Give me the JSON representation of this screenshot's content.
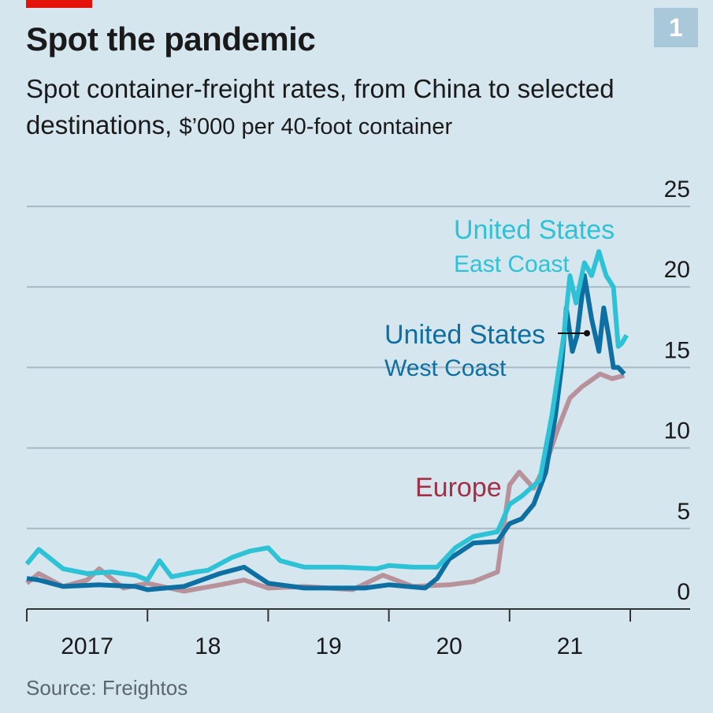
{
  "header": {
    "title": "Spot the pandemic",
    "subtitle_main": "Spot container-freight rates, from China to selected destinations,",
    "subtitle_unit": "$’000 per 40-foot container",
    "badge": "1"
  },
  "footer": {
    "source": "Source: Freightos"
  },
  "colors": {
    "east": "#2ec2d6",
    "west": "#0e6fa2",
    "europe": "#b8929a",
    "europe_label": "#a32f44",
    "grid": "#a9b8c2"
  },
  "chart_data": {
    "type": "line",
    "title": "Spot the pandemic",
    "ylabel": "$’000 per 40-foot container",
    "ylim": [
      0,
      25
    ],
    "xlim": [
      2017,
      2022
    ],
    "yticks": [
      "0",
      "5",
      "10",
      "15",
      "20",
      "25"
    ],
    "xtick_labels": [
      "2017",
      "18",
      "19",
      "20",
      "21"
    ],
    "series": [
      {
        "name": "United States East Coast",
        "label1": "United States",
        "label2": "East Coast",
        "x": [
          2017,
          2017.1,
          2017.3,
          2017.5,
          2017.7,
          2017.9,
          2018.0,
          2018.1,
          2018.2,
          2018.4,
          2018.5,
          2018.7,
          2018.85,
          2019.0,
          2019.1,
          2019.3,
          2019.6,
          2019.9,
          2020.0,
          2020.2,
          2020.4,
          2020.55,
          2020.7,
          2020.9,
          2021.0,
          2021.1,
          2021.25,
          2021.35,
          2021.45,
          2021.5,
          2021.55,
          2021.62,
          2021.68,
          2021.74,
          2021.8,
          2021.86,
          2021.9,
          2021.93,
          2021.97
        ],
        "y": [
          2.8,
          3.7,
          2.5,
          2.2,
          2.3,
          2.1,
          1.8,
          3.0,
          2.0,
          2.3,
          2.4,
          3.2,
          3.6,
          3.8,
          3.0,
          2.6,
          2.6,
          2.5,
          2.7,
          2.6,
          2.6,
          3.8,
          4.5,
          4.8,
          6.5,
          7.0,
          8.0,
          12.0,
          17.0,
          20.7,
          19.0,
          21.5,
          20.7,
          22.2,
          20.7,
          20.0,
          16.3,
          16.5,
          17.0
        ]
      },
      {
        "name": "United States West Coast",
        "label1": "United States",
        "label2": "West Coast",
        "x": [
          2017,
          2017.1,
          2017.3,
          2017.6,
          2017.9,
          2018.0,
          2018.3,
          2018.6,
          2018.8,
          2019.0,
          2019.3,
          2019.8,
          2020.0,
          2020.3,
          2020.4,
          2020.5,
          2020.7,
          2020.9,
          2021.0,
          2021.1,
          2021.2,
          2021.3,
          2021.38,
          2021.43,
          2021.47,
          2021.52,
          2021.56,
          2021.62,
          2021.68,
          2021.74,
          2021.78,
          2021.82,
          2021.86,
          2021.9,
          2021.95
        ],
        "y": [
          1.9,
          1.8,
          1.4,
          1.5,
          1.4,
          1.2,
          1.4,
          2.2,
          2.6,
          1.6,
          1.3,
          1.3,
          1.5,
          1.3,
          1.9,
          3.1,
          4.1,
          4.2,
          5.3,
          5.6,
          6.5,
          8.5,
          12.0,
          15.0,
          18.7,
          16.0,
          17.0,
          20.7,
          18.0,
          16.0,
          18.7,
          17.0,
          15.0,
          15.0,
          14.6
        ]
      },
      {
        "name": "Europe",
        "label1": "Europe",
        "x": [
          2017,
          2017.1,
          2017.3,
          2017.5,
          2017.6,
          2017.8,
          2018.0,
          2018.3,
          2018.6,
          2018.8,
          2019.0,
          2019.3,
          2019.7,
          2019.95,
          2020.2,
          2020.5,
          2020.7,
          2020.9,
          2021.0,
          2021.08,
          2021.2,
          2021.3,
          2021.4,
          2021.5,
          2021.6,
          2021.75,
          2021.85,
          2021.95
        ],
        "y": [
          1.6,
          2.2,
          1.4,
          1.8,
          2.5,
          1.3,
          1.6,
          1.1,
          1.5,
          1.8,
          1.3,
          1.4,
          1.2,
          2.1,
          1.4,
          1.5,
          1.7,
          2.3,
          7.7,
          8.5,
          7.5,
          9.0,
          11.2,
          13.1,
          13.8,
          14.6,
          14.3,
          14.5
        ]
      }
    ]
  }
}
